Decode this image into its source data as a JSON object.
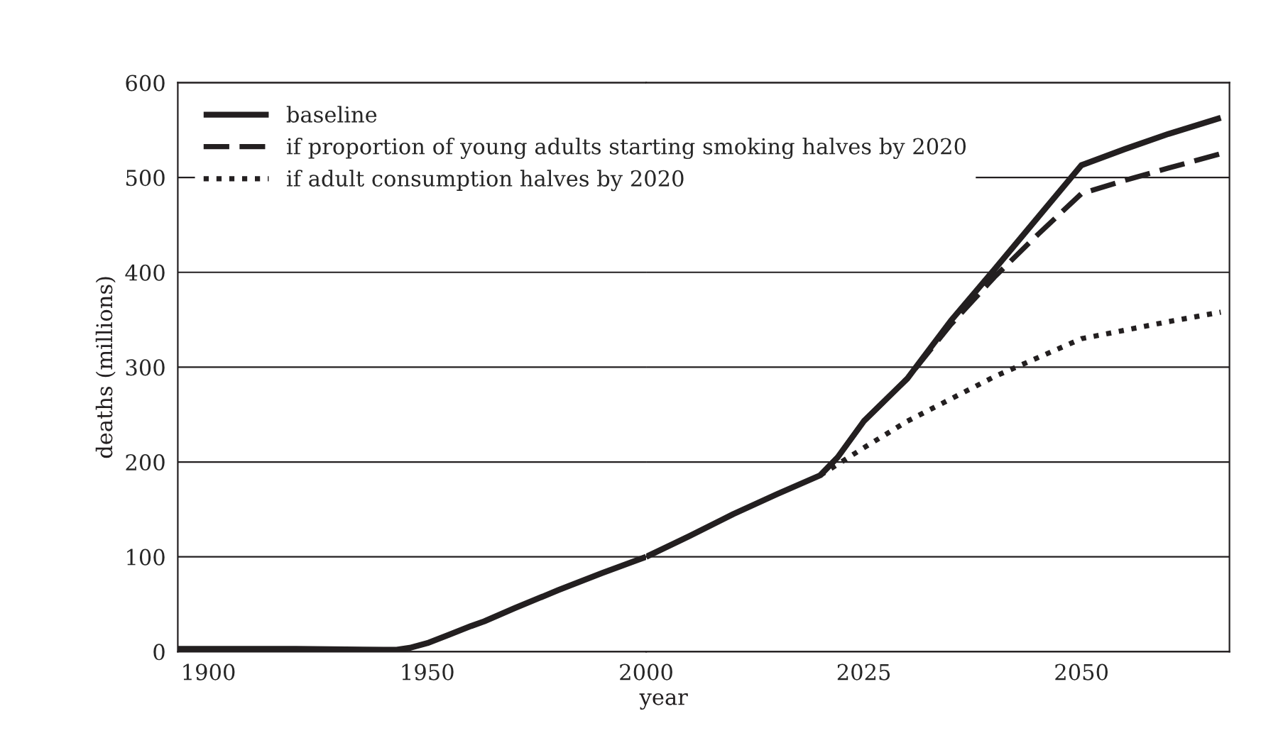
{
  "chart_data": [
    {
      "type": "line",
      "ylabel": "deaths (millions)",
      "xlim": [
        1893,
        2000
      ],
      "xticks": [
        1900,
        1950,
        2000
      ],
      "ylim": [
        0,
        600
      ],
      "yticks": [
        0,
        100,
        200,
        300,
        400,
        500,
        600
      ],
      "grid": "y",
      "marker": "none",
      "series": [
        {
          "color": "#231f20",
          "line_style": "solid",
          "x": [
            1893,
            1900,
            1920,
            1940,
            1943,
            1946,
            1950,
            1955,
            1960,
            1963,
            1970,
            1980,
            1990,
            2000
          ],
          "values": [
            3,
            3,
            3,
            2,
            2,
            4,
            9,
            18,
            27,
            32,
            46,
            65,
            83,
            100
          ]
        }
      ]
    },
    {
      "type": "line",
      "xlabel": "year",
      "xlim": [
        2000,
        2067
      ],
      "xticks": [
        2025,
        2050
      ],
      "ylim": [
        0,
        600
      ],
      "tick_labels": "x",
      "grid": "y",
      "legend": "top left",
      "marker": "none",
      "series": [
        {
          "name": "baseline",
          "color": "#231f20",
          "line_style": "solid",
          "x": [
            2000,
            2005,
            2010,
            2015,
            2020,
            2022,
            2025,
            2030,
            2035,
            2040,
            2045,
            2050,
            2055,
            2060,
            2066
          ],
          "values": [
            100,
            122,
            145,
            166,
            186,
            205,
            243,
            288,
            349,
            403,
            458,
            513,
            530,
            546,
            563
          ]
        },
        {
          "name": "if proportion of young adults starting smoking halves by 2020",
          "color": "#231f20",
          "line_style": "dashed",
          "x": [
            2020,
            2022,
            2025,
            2030,
            2035,
            2040,
            2045,
            2050,
            2055,
            2060,
            2066
          ],
          "values": [
            186,
            205,
            243,
            288,
            345,
            395,
            440,
            483,
            497,
            510,
            525
          ]
        },
        {
          "name": "if adult consumption halves by 2020",
          "color": "#231f20",
          "line_style": "dotted",
          "x": [
            2020,
            2025,
            2030,
            2040,
            2050,
            2060,
            2066
          ],
          "values": [
            186,
            215,
            243,
            290,
            330,
            348,
            358
          ]
        }
      ]
    }
  ]
}
